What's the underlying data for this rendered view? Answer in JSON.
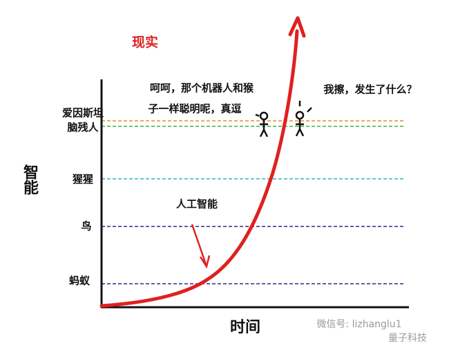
{
  "title": "现实",
  "axes": {
    "y_label": "智能",
    "x_label": "时间"
  },
  "levels": [
    {
      "label": "爱因斯坦"
    },
    {
      "label": "脑残人"
    },
    {
      "label": "猩猩"
    },
    {
      "label": "鸟"
    },
    {
      "label": "蚂蚁"
    }
  ],
  "annotations": {
    "curve_label": "人工智能",
    "speech_left": [
      "呵呵，那个机器人和猴",
      "子一样聪明呢，真逗"
    ],
    "speech_right": "我擦，发生了什么？"
  },
  "watermark": {
    "account": "微信号: lizhanglu1",
    "brand": "量子科技"
  }
}
